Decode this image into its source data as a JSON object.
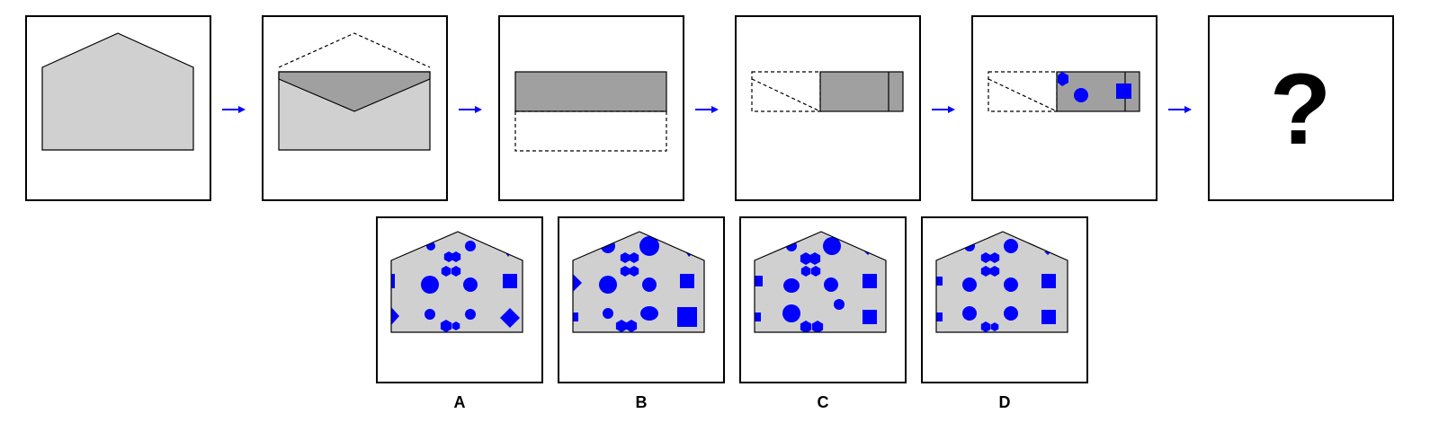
{
  "puzzle": {
    "unknown_mark": "?",
    "options": [
      "A",
      "B",
      "C",
      "D"
    ]
  },
  "colors": {
    "paper": "#d0d0d0",
    "flap": "#a0a0a0",
    "shape_fill": "#0000ff",
    "arrow": "#0000ff",
    "outline": "#000000"
  }
}
